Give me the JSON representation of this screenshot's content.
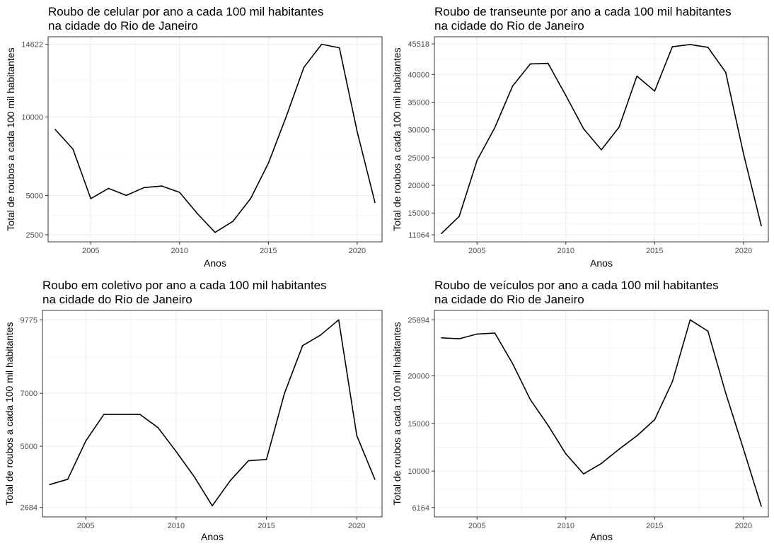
{
  "chart_data": [
    {
      "type": "line",
      "title_lines": [
        "Roubo de celular por ano a cada 100 mil habitantes",
        "na cidade do Rio de Janeiro"
      ],
      "xlabel": "Anos",
      "ylabel": "Total de roubos a cada 100 mil habitantes",
      "xlim": [
        2002.6,
        2021.4
      ],
      "ylim": [
        2050,
        15100
      ],
      "xticks": [
        2005,
        2010,
        2015,
        2020
      ],
      "yticks": [
        2500,
        5000,
        10000,
        14622
      ],
      "grid": true,
      "x": [
        2003,
        2004,
        2005,
        2006,
        2007,
        2008,
        2009,
        2010,
        2011,
        2012,
        2013,
        2014,
        2015,
        2016,
        2017,
        2018,
        2019,
        2020,
        2021
      ],
      "y": [
        9200,
        7950,
        4800,
        5450,
        5000,
        5500,
        5600,
        5200,
        3850,
        2650,
        3350,
        4800,
        7050,
        10000,
        13150,
        14622,
        14400,
        9050,
        4550
      ]
    },
    {
      "type": "line",
      "title_lines": [
        "Roubo de transeunte por ano a cada 100 mil habitantes",
        "na cidade do Rio de Janeiro"
      ],
      "xlabel": "Anos",
      "ylabel": "Total de roubos a cada 100 mil habitantes",
      "xlim": [
        2002.6,
        2021.4
      ],
      "ylim": [
        9800,
        46800
      ],
      "xticks": [
        2005,
        2010,
        2015,
        2020
      ],
      "yticks": [
        11064,
        15000,
        20000,
        25000,
        30000,
        35000,
        40000,
        45518
      ],
      "grid": true,
      "x": [
        2003,
        2004,
        2005,
        2006,
        2007,
        2008,
        2009,
        2010,
        2011,
        2012,
        2013,
        2014,
        2015,
        2016,
        2017,
        2018,
        2019,
        2020,
        2021
      ],
      "y": [
        11300,
        14400,
        24500,
        30400,
        37900,
        41900,
        42000,
        36200,
        30200,
        26400,
        30500,
        39700,
        37000,
        45000,
        45400,
        44900,
        40400,
        25700,
        12700
      ]
    },
    {
      "type": "line",
      "title_lines": [
        "Roubo em coletivo por ano a cada 100 mil habitantes",
        "na cidade do Rio de Janeiro"
      ],
      "xlabel": "Anos",
      "ylabel": "Total de roubos a cada 100 mil habitantes",
      "xlim": [
        2002.6,
        2021.4
      ],
      "ylim": [
        2330,
        10130
      ],
      "xticks": [
        2005,
        2010,
        2015,
        2020
      ],
      "yticks": [
        2684,
        5000,
        7000,
        9775
      ],
      "grid": true,
      "x": [
        2003,
        2004,
        2005,
        2006,
        2007,
        2008,
        2009,
        2010,
        2011,
        2012,
        2013,
        2014,
        2015,
        2016,
        2017,
        2018,
        2019,
        2020,
        2021
      ],
      "y": [
        3550,
        3750,
        5200,
        6200,
        6200,
        6200,
        5700,
        4800,
        3850,
        2750,
        3700,
        4450,
        4500,
        7000,
        8800,
        9200,
        9775,
        5400,
        3750
      ]
    },
    {
      "type": "line",
      "title_lines": [
        "Roubo de veículos por ano a cada 100 mil habitantes",
        "na cidade do Rio de Janeiro"
      ],
      "xlabel": "Anos",
      "ylabel": "Total de roubos a cada 100 mil habitantes",
      "xlim": [
        2002.6,
        2021.4
      ],
      "ylim": [
        5180,
        26880
      ],
      "xticks": [
        2005,
        2010,
        2015,
        2020
      ],
      "yticks": [
        6164,
        10000,
        15000,
        20000,
        25894
      ],
      "grid": true,
      "x": [
        2003,
        2004,
        2005,
        2006,
        2007,
        2008,
        2009,
        2010,
        2011,
        2012,
        2013,
        2014,
        2015,
        2016,
        2017,
        2018,
        2019,
        2020,
        2021
      ],
      "y": [
        24000,
        23900,
        24400,
        24500,
        21300,
        17500,
        14800,
        11800,
        9700,
        10800,
        12300,
        13700,
        15400,
        19400,
        25894,
        24700,
        18200,
        12300,
        6300
      ]
    }
  ]
}
